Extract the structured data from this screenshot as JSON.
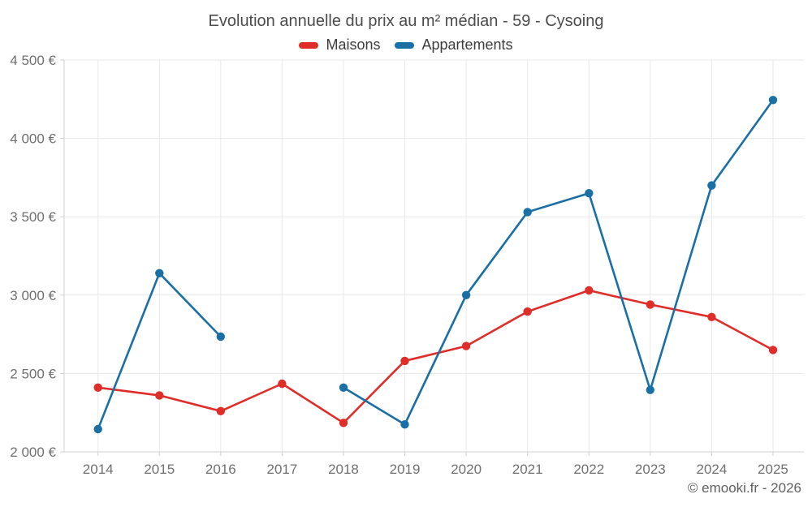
{
  "title": "Evolution annuelle du prix au m² médian - 59 - Cysoing",
  "footer": "© emooki.fr - 2026",
  "colors": {
    "background": "#ffffff",
    "maisons": "#df2e2a",
    "appartements": "#1a6fa5",
    "grid": "#e9e9e9",
    "axis": "#d0d0d0",
    "axis_label": "#707070",
    "title_text": "#4c4c4c",
    "legend_text": "#3d3d3d",
    "footer_text": "#606060"
  },
  "chart_data": {
    "type": "line",
    "title": "Evolution annuelle du prix au m² médian - 59 - Cysoing",
    "categories": [
      "2014",
      "2015",
      "2016",
      "2017",
      "2018",
      "2019",
      "2020",
      "2021",
      "2022",
      "2023",
      "2024",
      "2025"
    ],
    "series": [
      {
        "name": "Maisons",
        "color": "#df2e2a",
        "values": [
          2410,
          2360,
          2260,
          2435,
          2185,
          2580,
          2675,
          2895,
          3030,
          2940,
          2860,
          2650
        ]
      },
      {
        "name": "Appartements",
        "color": "#1a6fa5",
        "values": [
          2145,
          3140,
          2735,
          null,
          2410,
          2175,
          3000,
          3530,
          3650,
          2395,
          3700,
          4245
        ]
      }
    ],
    "xlabel": "",
    "ylabel": "",
    "ylim": [
      2000,
      4500
    ],
    "yticks": [
      2000,
      2500,
      3000,
      3500,
      4000,
      4500
    ],
    "ytick_labels": [
      "2 000 €",
      "2 500 €",
      "3 000 €",
      "3 500 €",
      "4 000 €",
      "4 500 €"
    ],
    "grid": true,
    "legend_position": "top",
    "marker": "circle"
  }
}
